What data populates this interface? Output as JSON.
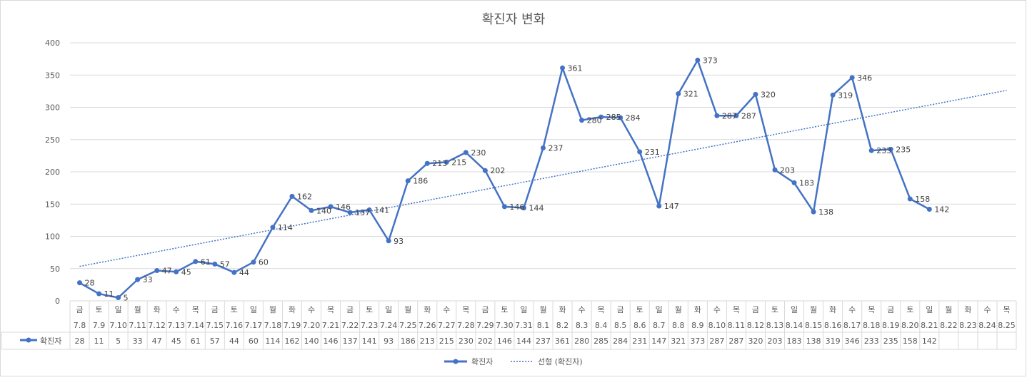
{
  "chart_data": {
    "type": "line",
    "title": "확진자 변화",
    "weekdays": [
      "금",
      "토",
      "일",
      "월",
      "화",
      "수",
      "목",
      "금",
      "토",
      "일",
      "월",
      "화",
      "수",
      "목",
      "금",
      "토",
      "일",
      "월",
      "화",
      "수",
      "목",
      "금",
      "토",
      "일",
      "월",
      "화",
      "수",
      "목",
      "금",
      "토",
      "일",
      "월",
      "화",
      "수",
      "목",
      "금",
      "토",
      "일",
      "월",
      "화",
      "수",
      "목",
      "금",
      "토",
      "일",
      "월",
      "화",
      "수",
      "목"
    ],
    "categories": [
      "7.8",
      "7.9",
      "7.10",
      "7.11",
      "7.12",
      "7.13",
      "7.14",
      "7.15",
      "7.16",
      "7.17",
      "7.18",
      "7.19",
      "7.20",
      "7.21",
      "7.22",
      "7.23",
      "7.24",
      "7.25",
      "7.26",
      "7.27",
      "7.28",
      "7.29",
      "7.30",
      "7.31",
      "8.1",
      "8.2",
      "8.3",
      "8.4",
      "8.5",
      "8.6",
      "8.7",
      "8.8",
      "8.9",
      "8.10",
      "8.11",
      "8.12",
      "8.13",
      "8.14",
      "8.15",
      "8.16",
      "8.17",
      "8.18",
      "8.19",
      "8.20",
      "8.21",
      "8.22",
      "8.23",
      "8.24",
      "8.25"
    ],
    "series": [
      {
        "name": "확진자",
        "color": "#4472C4",
        "values": [
          28,
          11,
          5,
          33,
          47,
          45,
          61,
          57,
          44,
          60,
          114,
          162,
          140,
          146,
          137,
          141,
          93,
          186,
          213,
          215,
          230,
          202,
          146,
          144,
          237,
          361,
          280,
          285,
          284,
          231,
          147,
          321,
          373,
          287,
          287,
          320,
          203,
          183,
          138,
          319,
          346,
          233,
          235,
          158,
          142,
          null,
          null,
          null,
          null
        ]
      }
    ],
    "trendline": {
      "name": "선형 (확진자)",
      "type": "linear",
      "style": "dotted",
      "color": "#4472C4"
    },
    "ylim": [
      0,
      400
    ],
    "yticks": [
      0,
      50,
      100,
      150,
      200,
      250,
      300,
      350,
      400
    ],
    "grid": true,
    "legend_position": "bottom",
    "data_table": true
  }
}
